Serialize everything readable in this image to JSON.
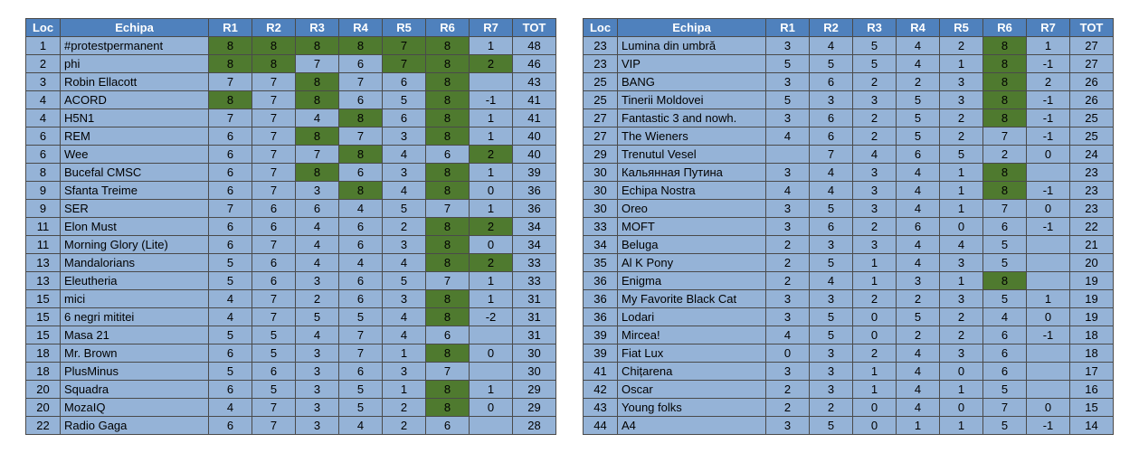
{
  "headers": [
    "Loc",
    "Echipa",
    "R1",
    "R2",
    "R3",
    "R4",
    "R5",
    "R6",
    "R7",
    "TOT"
  ],
  "colors": {
    "header_bg": "#4f81bd",
    "cell_bg": "#95b3d7",
    "highlight_bg": "#4f7a2f",
    "border": "#4a4a4a"
  },
  "left_table": [
    {
      "loc": "1",
      "team": "#protestpermanent",
      "r": [
        "8",
        "8",
        "8",
        "8",
        "7",
        "8",
        "1"
      ],
      "tot": "48",
      "hl": [
        1,
        1,
        1,
        1,
        1,
        1,
        0
      ]
    },
    {
      "loc": "2",
      "team": "phi",
      "r": [
        "8",
        "8",
        "7",
        "6",
        "7",
        "8",
        "2"
      ],
      "tot": "46",
      "hl": [
        1,
        1,
        0,
        0,
        1,
        1,
        1
      ]
    },
    {
      "loc": "3",
      "team": "Robin Ellacott",
      "r": [
        "7",
        "7",
        "8",
        "7",
        "6",
        "8",
        ""
      ],
      "tot": "43",
      "hl": [
        0,
        0,
        1,
        0,
        0,
        1,
        0
      ]
    },
    {
      "loc": "4",
      "team": "ACORD",
      "r": [
        "8",
        "7",
        "8",
        "6",
        "5",
        "8",
        "-1"
      ],
      "tot": "41",
      "hl": [
        1,
        0,
        1,
        0,
        0,
        1,
        0
      ]
    },
    {
      "loc": "4",
      "team": "H5N1",
      "r": [
        "7",
        "7",
        "4",
        "8",
        "6",
        "8",
        "1"
      ],
      "tot": "41",
      "hl": [
        0,
        0,
        0,
        1,
        0,
        1,
        0
      ]
    },
    {
      "loc": "6",
      "team": "REM",
      "r": [
        "6",
        "7",
        "8",
        "7",
        "3",
        "8",
        "1"
      ],
      "tot": "40",
      "hl": [
        0,
        0,
        1,
        0,
        0,
        1,
        0
      ]
    },
    {
      "loc": "6",
      "team": "Wee",
      "r": [
        "6",
        "7",
        "7",
        "8",
        "4",
        "6",
        "2"
      ],
      "tot": "40",
      "hl": [
        0,
        0,
        0,
        1,
        0,
        0,
        1
      ]
    },
    {
      "loc": "8",
      "team": "Bucefal CMSC",
      "r": [
        "6",
        "7",
        "8",
        "6",
        "3",
        "8",
        "1"
      ],
      "tot": "39",
      "hl": [
        0,
        0,
        1,
        0,
        0,
        1,
        0
      ]
    },
    {
      "loc": "9",
      "team": "Sfanta Treime",
      "r": [
        "6",
        "7",
        "3",
        "8",
        "4",
        "8",
        "0"
      ],
      "tot": "36",
      "hl": [
        0,
        0,
        0,
        1,
        0,
        1,
        0
      ]
    },
    {
      "loc": "9",
      "team": "SER",
      "r": [
        "7",
        "6",
        "6",
        "4",
        "5",
        "7",
        "1"
      ],
      "tot": "36",
      "hl": [
        0,
        0,
        0,
        0,
        0,
        0,
        0
      ]
    },
    {
      "loc": "11",
      "team": "Elon Must",
      "r": [
        "6",
        "6",
        "4",
        "6",
        "2",
        "8",
        "2"
      ],
      "tot": "34",
      "hl": [
        0,
        0,
        0,
        0,
        0,
        1,
        1
      ]
    },
    {
      "loc": "11",
      "team": "Morning Glory (Lite)",
      "r": [
        "6",
        "7",
        "4",
        "6",
        "3",
        "8",
        "0"
      ],
      "tot": "34",
      "hl": [
        0,
        0,
        0,
        0,
        0,
        1,
        0
      ]
    },
    {
      "loc": "13",
      "team": "Mandalorians",
      "r": [
        "5",
        "6",
        "4",
        "4",
        "4",
        "8",
        "2"
      ],
      "tot": "33",
      "hl": [
        0,
        0,
        0,
        0,
        0,
        1,
        1
      ]
    },
    {
      "loc": "13",
      "team": "Eleutheria",
      "r": [
        "5",
        "6",
        "3",
        "6",
        "5",
        "7",
        "1"
      ],
      "tot": "33",
      "hl": [
        0,
        0,
        0,
        0,
        0,
        0,
        0
      ]
    },
    {
      "loc": "15",
      "team": "mici",
      "r": [
        "4",
        "7",
        "2",
        "6",
        "3",
        "8",
        "1"
      ],
      "tot": "31",
      "hl": [
        0,
        0,
        0,
        0,
        0,
        1,
        0
      ]
    },
    {
      "loc": "15",
      "team": "6 negri mititei",
      "r": [
        "4",
        "7",
        "5",
        "5",
        "4",
        "8",
        "-2"
      ],
      "tot": "31",
      "hl": [
        0,
        0,
        0,
        0,
        0,
        1,
        0
      ]
    },
    {
      "loc": "15",
      "team": "Masa 21",
      "r": [
        "5",
        "5",
        "4",
        "7",
        "4",
        "6",
        ""
      ],
      "tot": "31",
      "hl": [
        0,
        0,
        0,
        0,
        0,
        0,
        0
      ]
    },
    {
      "loc": "18",
      "team": "Mr. Brown",
      "r": [
        "6",
        "5",
        "3",
        "7",
        "1",
        "8",
        "0"
      ],
      "tot": "30",
      "hl": [
        0,
        0,
        0,
        0,
        0,
        1,
        0
      ]
    },
    {
      "loc": "18",
      "team": "PlusMinus",
      "r": [
        "5",
        "6",
        "3",
        "6",
        "3",
        "7",
        ""
      ],
      "tot": "30",
      "hl": [
        0,
        0,
        0,
        0,
        0,
        0,
        0
      ]
    },
    {
      "loc": "20",
      "team": "Squadra",
      "r": [
        "6",
        "5",
        "3",
        "5",
        "1",
        "8",
        "1"
      ],
      "tot": "29",
      "hl": [
        0,
        0,
        0,
        0,
        0,
        1,
        0
      ]
    },
    {
      "loc": "20",
      "team": "MozaIQ",
      "r": [
        "4",
        "7",
        "3",
        "5",
        "2",
        "8",
        "0"
      ],
      "tot": "29",
      "hl": [
        0,
        0,
        0,
        0,
        0,
        1,
        0
      ]
    },
    {
      "loc": "22",
      "team": "Radio Gaga",
      "r": [
        "6",
        "7",
        "3",
        "4",
        "2",
        "6",
        ""
      ],
      "tot": "28",
      "hl": [
        0,
        0,
        0,
        0,
        0,
        0,
        0
      ]
    }
  ],
  "right_table": [
    {
      "loc": "23",
      "team": "Lumina din umbră",
      "r": [
        "3",
        "4",
        "5",
        "4",
        "2",
        "8",
        "1"
      ],
      "tot": "27",
      "hl": [
        0,
        0,
        0,
        0,
        0,
        1,
        0
      ]
    },
    {
      "loc": "23",
      "team": "VIP",
      "r": [
        "5",
        "5",
        "5",
        "4",
        "1",
        "8",
        "-1"
      ],
      "tot": "27",
      "hl": [
        0,
        0,
        0,
        0,
        0,
        1,
        0
      ]
    },
    {
      "loc": "25",
      "team": "BANG",
      "r": [
        "3",
        "6",
        "2",
        "2",
        "3",
        "8",
        "2"
      ],
      "tot": "26",
      "hl": [
        0,
        0,
        0,
        0,
        0,
        1,
        0
      ]
    },
    {
      "loc": "25",
      "team": "Tinerii Moldovei",
      "r": [
        "5",
        "3",
        "3",
        "5",
        "3",
        "8",
        "-1"
      ],
      "tot": "26",
      "hl": [
        0,
        0,
        0,
        0,
        0,
        1,
        0
      ]
    },
    {
      "loc": "27",
      "team": "Fantastic 3 and nowh.",
      "r": [
        "3",
        "6",
        "2",
        "5",
        "2",
        "8",
        "-1"
      ],
      "tot": "25",
      "hl": [
        0,
        0,
        0,
        0,
        0,
        1,
        0
      ]
    },
    {
      "loc": "27",
      "team": "The Wieners",
      "r": [
        "4",
        "6",
        "2",
        "5",
        "2",
        "7",
        "-1"
      ],
      "tot": "25",
      "hl": [
        0,
        0,
        0,
        0,
        0,
        0,
        0
      ]
    },
    {
      "loc": "29",
      "team": "Trenutul Vesel",
      "r": [
        "",
        "7",
        "4",
        "6",
        "5",
        "2",
        "0"
      ],
      "tot": "24",
      "hl": [
        0,
        0,
        0,
        0,
        0,
        0,
        0
      ]
    },
    {
      "loc": "30",
      "team": "Кальянная Путина",
      "r": [
        "3",
        "4",
        "3",
        "4",
        "1",
        "8",
        ""
      ],
      "tot": "23",
      "hl": [
        0,
        0,
        0,
        0,
        0,
        1,
        0
      ]
    },
    {
      "loc": "30",
      "team": "Echipa Nostra",
      "r": [
        "4",
        "4",
        "3",
        "4",
        "1",
        "8",
        "-1"
      ],
      "tot": "23",
      "hl": [
        0,
        0,
        0,
        0,
        0,
        1,
        0
      ]
    },
    {
      "loc": "30",
      "team": "Oreo",
      "r": [
        "3",
        "5",
        "3",
        "4",
        "1",
        "7",
        "0"
      ],
      "tot": "23",
      "hl": [
        0,
        0,
        0,
        0,
        0,
        0,
        0
      ]
    },
    {
      "loc": "33",
      "team": "MOFT",
      "r": [
        "3",
        "6",
        "2",
        "6",
        "0",
        "6",
        "-1"
      ],
      "tot": "22",
      "hl": [
        0,
        0,
        0,
        0,
        0,
        0,
        0
      ]
    },
    {
      "loc": "34",
      "team": "Beluga",
      "r": [
        "2",
        "3",
        "3",
        "4",
        "4",
        "5",
        ""
      ],
      "tot": "21",
      "hl": [
        0,
        0,
        0,
        0,
        0,
        0,
        0
      ]
    },
    {
      "loc": "35",
      "team": "Al K Pony",
      "r": [
        "2",
        "5",
        "1",
        "4",
        "3",
        "5",
        ""
      ],
      "tot": "20",
      "hl": [
        0,
        0,
        0,
        0,
        0,
        0,
        0
      ]
    },
    {
      "loc": "36",
      "team": "Enigma",
      "r": [
        "2",
        "4",
        "1",
        "3",
        "1",
        "8",
        ""
      ],
      "tot": "19",
      "hl": [
        0,
        0,
        0,
        0,
        0,
        1,
        0
      ]
    },
    {
      "loc": "36",
      "team": "My Favorite Black Cat",
      "r": [
        "3",
        "3",
        "2",
        "2",
        "3",
        "5",
        "1"
      ],
      "tot": "19",
      "hl": [
        0,
        0,
        0,
        0,
        0,
        0,
        0
      ]
    },
    {
      "loc": "36",
      "team": "Lodari",
      "r": [
        "3",
        "5",
        "0",
        "5",
        "2",
        "4",
        "0"
      ],
      "tot": "19",
      "hl": [
        0,
        0,
        0,
        0,
        0,
        0,
        0
      ]
    },
    {
      "loc": "39",
      "team": "Mircea!",
      "r": [
        "4",
        "5",
        "0",
        "2",
        "2",
        "6",
        "-1"
      ],
      "tot": "18",
      "hl": [
        0,
        0,
        0,
        0,
        0,
        0,
        0
      ]
    },
    {
      "loc": "39",
      "team": "Fiat Lux",
      "r": [
        "0",
        "3",
        "2",
        "4",
        "3",
        "6",
        ""
      ],
      "tot": "18",
      "hl": [
        0,
        0,
        0,
        0,
        0,
        0,
        0
      ]
    },
    {
      "loc": "41",
      "team": "Chițarena",
      "r": [
        "3",
        "3",
        "1",
        "4",
        "0",
        "6",
        ""
      ],
      "tot": "17",
      "hl": [
        0,
        0,
        0,
        0,
        0,
        0,
        0
      ]
    },
    {
      "loc": "42",
      "team": "Oscar",
      "r": [
        "2",
        "3",
        "1",
        "4",
        "1",
        "5",
        ""
      ],
      "tot": "16",
      "hl": [
        0,
        0,
        0,
        0,
        0,
        0,
        0
      ]
    },
    {
      "loc": "43",
      "team": "Young folks",
      "r": [
        "2",
        "2",
        "0",
        "4",
        "0",
        "7",
        "0"
      ],
      "tot": "15",
      "hl": [
        0,
        0,
        0,
        0,
        0,
        0,
        0
      ]
    },
    {
      "loc": "44",
      "team": "A4",
      "r": [
        "3",
        "5",
        "0",
        "1",
        "1",
        "5",
        "-1"
      ],
      "tot": "14",
      "hl": [
        0,
        0,
        0,
        0,
        0,
        0,
        0
      ]
    }
  ]
}
